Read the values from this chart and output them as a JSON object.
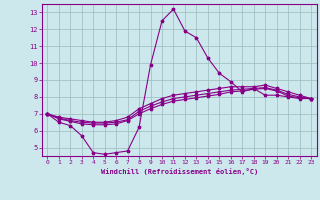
{
  "xlabel": "Windchill (Refroidissement éolien,°C)",
  "bg_color": "#cce8ec",
  "line_color": "#880088",
  "grid_color": "#99bbbb",
  "x_ticks": [
    0,
    1,
    2,
    3,
    4,
    5,
    6,
    7,
    8,
    9,
    10,
    11,
    12,
    13,
    14,
    15,
    16,
    17,
    18,
    19,
    20,
    21,
    22,
    23
  ],
  "y_ticks": [
    5,
    6,
    7,
    8,
    9,
    10,
    11,
    12,
    13
  ],
  "ylim": [
    4.5,
    13.5
  ],
  "xlim": [
    -0.5,
    23.5
  ],
  "line_wc": [
    7.0,
    6.5,
    6.3,
    5.7,
    4.7,
    4.6,
    4.7,
    4.8,
    6.2,
    9.9,
    12.5,
    13.2,
    11.9,
    11.5,
    10.3,
    9.4,
    8.9,
    8.3,
    8.5,
    8.1,
    8.1,
    8.0,
    7.9,
    7.9
  ],
  "line_top": [
    7.0,
    6.8,
    6.7,
    6.6,
    6.5,
    6.5,
    6.6,
    6.8,
    7.3,
    7.6,
    7.9,
    8.1,
    8.2,
    8.3,
    8.4,
    8.5,
    8.6,
    8.6,
    8.6,
    8.7,
    8.5,
    8.3,
    8.1,
    7.9
  ],
  "line_mid": [
    7.0,
    6.75,
    6.6,
    6.5,
    6.45,
    6.45,
    6.5,
    6.65,
    7.15,
    7.45,
    7.7,
    7.9,
    8.0,
    8.1,
    8.2,
    8.3,
    8.4,
    8.45,
    8.5,
    8.55,
    8.4,
    8.15,
    8.0,
    7.9
  ],
  "line_bot": [
    7.0,
    6.7,
    6.55,
    6.4,
    6.35,
    6.35,
    6.4,
    6.6,
    7.0,
    7.3,
    7.55,
    7.75,
    7.85,
    7.95,
    8.05,
    8.15,
    8.3,
    8.35,
    8.45,
    8.5,
    8.35,
    8.05,
    7.95,
    7.9
  ]
}
